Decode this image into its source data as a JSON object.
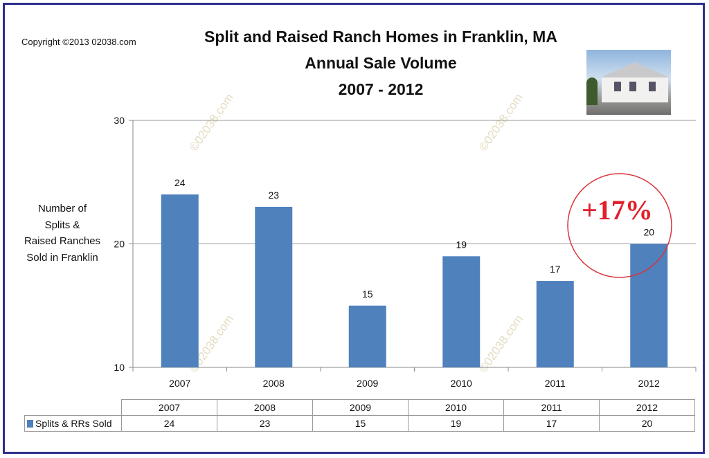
{
  "copyright": "Copyright ©2013 02038.com",
  "title_lines": [
    "Split and Raised Ranch Homes in Franklin, MA",
    "Annual Sale Volume",
    "2007 - 2012"
  ],
  "watermark": "©02038.com",
  "annotation": "+17%",
  "chart_data": {
    "type": "bar",
    "title": "Split and Raised Ranch Homes in Franklin, MA Annual Sale Volume 2007 - 2012",
    "ylabel": "Number of Splits & Raised Ranches Sold in Franklin",
    "ylabel_lines": [
      "Number of",
      "Splits &",
      "Raised Ranches",
      "Sold in Franklin"
    ],
    "categories": [
      "2007",
      "2008",
      "2009",
      "2010",
      "2011",
      "2012"
    ],
    "series": [
      {
        "name": "Splits & RRs Sold",
        "values": [
          24,
          23,
          15,
          19,
          17,
          20
        ],
        "color": "#4f81bd"
      }
    ],
    "ylim": [
      10,
      30
    ],
    "yticks": [
      "10",
      "20",
      "30"
    ],
    "grid": true,
    "data_table": true
  }
}
